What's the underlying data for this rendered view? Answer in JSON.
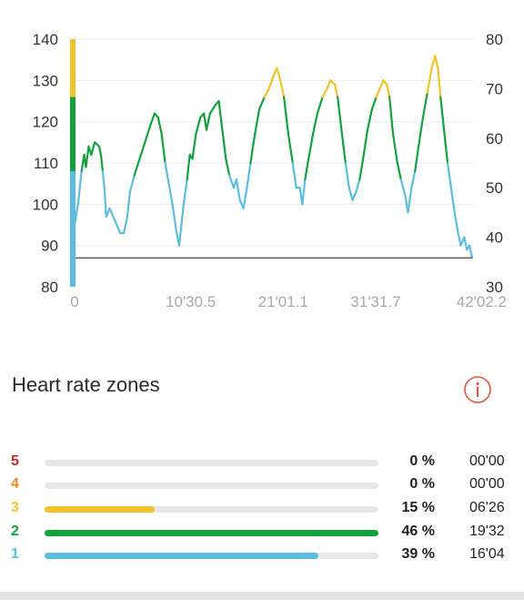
{
  "chart_data": {
    "type": "line",
    "y_left_ticks": [
      "140",
      "130",
      "120",
      "110",
      "100",
      "90",
      "80"
    ],
    "y_right_ticks": [
      "80",
      "70",
      "60",
      "50",
      "40",
      "30"
    ],
    "x_tick_labels": [
      "0",
      "10'30.5",
      "21'01.1",
      "31'31.7",
      "42'02.2"
    ],
    "x_ticks_min": [
      0,
      10.508,
      21.018,
      31.528,
      42.037
    ],
    "ylim_left": [
      80,
      140
    ],
    "ylim_right": [
      30,
      80
    ],
    "xlim_min": [
      0,
      42.037
    ],
    "grid": true,
    "reference_line": 87,
    "zone_thresholds": {
      "zone1_max": 108,
      "zone2_max": 126,
      "zone3_max": 140
    },
    "zone_colors": {
      "1": "#5bbde0",
      "2": "#12a23c",
      "3": "#f3c227"
    },
    "series": [
      {
        "points": [
          [
            0.2,
            95
          ],
          [
            0.6,
            100
          ],
          [
            1.0,
            108
          ],
          [
            1.3,
            112
          ],
          [
            1.5,
            109
          ],
          [
            1.8,
            114
          ],
          [
            2.1,
            112
          ],
          [
            2.5,
            115
          ],
          [
            3.0,
            114
          ],
          [
            3.2,
            112
          ],
          [
            3.4,
            108
          ],
          [
            3.6,
            104
          ],
          [
            3.8,
            97
          ],
          [
            4.2,
            99
          ],
          [
            4.8,
            96
          ],
          [
            5.4,
            93
          ],
          [
            5.8,
            93
          ],
          [
            6.2,
            97
          ],
          [
            6.5,
            103
          ],
          [
            7.0,
            107
          ],
          [
            7.6,
            111
          ],
          [
            8.2,
            115
          ],
          [
            8.8,
            119
          ],
          [
            9.3,
            122
          ],
          [
            9.7,
            121
          ],
          [
            10.1,
            117
          ],
          [
            10.5,
            110
          ],
          [
            11.0,
            104
          ],
          [
            11.4,
            99
          ],
          [
            11.8,
            93
          ],
          [
            12.1,
            90
          ],
          [
            12.3,
            94
          ],
          [
            12.6,
            100
          ],
          [
            13.0,
            106
          ],
          [
            13.3,
            112
          ],
          [
            13.6,
            111
          ],
          [
            14.0,
            117
          ],
          [
            14.5,
            121
          ],
          [
            14.9,
            122
          ],
          [
            15.2,
            118
          ],
          [
            15.6,
            122
          ],
          [
            16.2,
            124
          ],
          [
            16.6,
            125
          ],
          [
            17.0,
            118
          ],
          [
            17.4,
            111
          ],
          [
            17.8,
            107
          ],
          [
            18.3,
            104
          ],
          [
            18.6,
            106
          ],
          [
            19.0,
            101
          ],
          [
            19.4,
            99
          ],
          [
            19.8,
            104
          ],
          [
            20.2,
            110
          ],
          [
            20.7,
            117
          ],
          [
            21.2,
            123
          ],
          [
            21.8,
            126
          ],
          [
            22.3,
            128
          ],
          [
            22.8,
            131
          ],
          [
            23.2,
            133
          ],
          [
            23.6,
            130
          ],
          [
            24.0,
            126
          ],
          [
            24.5,
            117
          ],
          [
            25.0,
            110
          ],
          [
            25.4,
            104
          ],
          [
            25.8,
            104
          ],
          [
            26.1,
            100
          ],
          [
            26.4,
            106
          ],
          [
            26.8,
            111
          ],
          [
            27.3,
            117
          ],
          [
            27.8,
            122
          ],
          [
            28.4,
            126
          ],
          [
            28.9,
            128
          ],
          [
            29.3,
            130
          ],
          [
            29.8,
            129
          ],
          [
            30.1,
            126
          ],
          [
            30.6,
            117
          ],
          [
            31.0,
            110
          ],
          [
            31.4,
            104
          ],
          [
            31.8,
            101
          ],
          [
            32.2,
            103
          ],
          [
            32.6,
            106
          ],
          [
            33.0,
            111
          ],
          [
            33.5,
            118
          ],
          [
            34.0,
            123
          ],
          [
            34.5,
            126
          ],
          [
            34.9,
            128
          ],
          [
            35.3,
            130
          ],
          [
            35.7,
            129
          ],
          [
            36.0,
            126
          ],
          [
            36.4,
            117
          ],
          [
            36.9,
            110
          ],
          [
            37.3,
            106
          ],
          [
            37.8,
            102
          ],
          [
            38.1,
            98
          ],
          [
            38.5,
            104
          ],
          [
            38.9,
            108
          ],
          [
            39.3,
            114
          ],
          [
            39.8,
            121
          ],
          [
            40.3,
            127
          ],
          [
            40.8,
            133
          ],
          [
            41.2,
            136
          ],
          [
            41.5,
            133
          ],
          [
            41.8,
            126
          ],
          [
            42.2,
            118
          ],
          [
            42.6,
            110
          ],
          [
            43.0,
            104
          ],
          [
            43.4,
            98
          ],
          [
            43.8,
            93
          ],
          [
            44.1,
            90
          ],
          [
            44.5,
            92
          ],
          [
            44.8,
            89
          ],
          [
            45.1,
            90
          ],
          [
            45.4,
            87
          ]
        ]
      }
    ]
  },
  "zones": {
    "title": "Heart rate zones",
    "rows": [
      {
        "zone": "5",
        "color": "#c62828",
        "fraction": 0.0,
        "percent": "0 %",
        "time": "00'00"
      },
      {
        "zone": "4",
        "color": "#ee8a1c",
        "fraction": 0.0,
        "percent": "0 %",
        "time": "00'00"
      },
      {
        "zone": "3",
        "color": "#f3c227",
        "fraction": 0.33,
        "percent": "15 %",
        "time": "06'26"
      },
      {
        "zone": "2",
        "color": "#12a23c",
        "fraction": 1.0,
        "percent": "46 %",
        "time": "19'32"
      },
      {
        "zone": "1",
        "color": "#5bbde0",
        "fraction": 0.82,
        "percent": "39 %",
        "time": "16'04"
      }
    ],
    "info_icon": "info-circle-icon",
    "info_color": "#e0533d"
  }
}
